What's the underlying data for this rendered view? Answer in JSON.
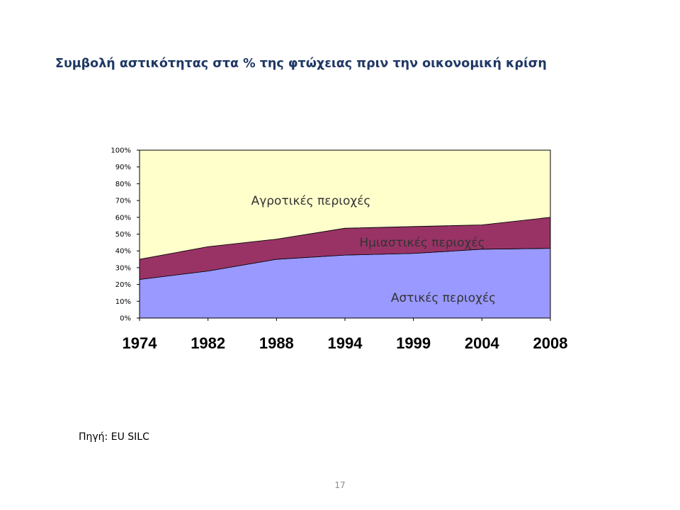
{
  "slide": {
    "title": "Συμβολή αστικότητας στα % της φτώχειας πριν την οικονομική κρίση",
    "source": "Πηγή: EU SILC",
    "page_number": "17"
  },
  "chart_data": {
    "type": "area",
    "stacked": true,
    "percent_stacked": true,
    "categories": [
      "1974",
      "1982",
      "1988",
      "1994",
      "1999",
      "2004",
      "2008"
    ],
    "y_ticks": [
      "0%",
      "10%",
      "20%",
      "30%",
      "40%",
      "50%",
      "60%",
      "70%",
      "80%",
      "90%",
      "100%"
    ],
    "ylim": [
      0,
      100
    ],
    "grid": false,
    "legend": "none",
    "series": [
      {
        "name": "Αστικές περιοχές",
        "values": [
          23,
          28,
          35,
          37.5,
          38.5,
          41,
          41.5
        ],
        "color": "#9999ff"
      },
      {
        "name": "Ημιαστικές περιοχές",
        "values": [
          12,
          14.5,
          12,
          16,
          16,
          14.5,
          18.5
        ],
        "color": "#993366"
      },
      {
        "name": "Αγροτικές περιοχές",
        "values": [
          65,
          57.5,
          53,
          46.5,
          45.5,
          44.5,
          40
        ],
        "color": "#ffffcc"
      }
    ]
  }
}
